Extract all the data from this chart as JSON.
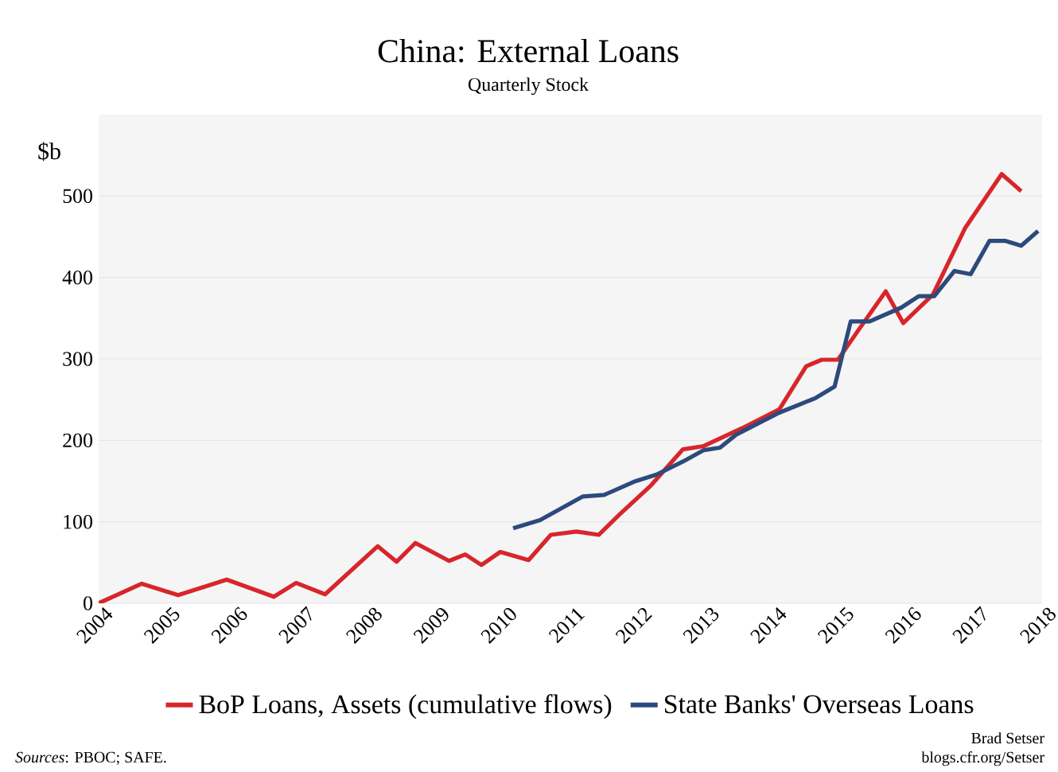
{
  "chart_data": {
    "type": "line",
    "title": "China: External Loans",
    "subtitle": "Quarterly Stock",
    "ylabel": "$b",
    "xlim": [
      2004,
      2018
    ],
    "xticks": [
      2004,
      2005,
      2006,
      2007,
      2008,
      2009,
      2010,
      2011,
      2012,
      2013,
      2014,
      2015,
      2016,
      2017,
      2018
    ],
    "ylim": [
      0,
      600
    ],
    "yticks": [
      0,
      100,
      200,
      300,
      400,
      500
    ],
    "grid": "y",
    "legend": "bottom",
    "marker": "none",
    "line_style": "solid",
    "series": [
      {
        "name": "BoP Loans, Assets (cumulative flows)",
        "color": "#d7262b",
        "x": [
          2004,
          2004.64,
          2005.18,
          2005.9,
          2006.6,
          2006.93,
          2007.36,
          2008.14,
          2008.42,
          2008.7,
          2009.2,
          2009.44,
          2009.68,
          2009.96,
          2010.38,
          2010.71,
          2011.09,
          2011.42,
          2011.73,
          2012.2,
          2012.67,
          2012.98,
          2013.55,
          2014.1,
          2014.5,
          2014.73,
          2014.97,
          2015.28,
          2015.68,
          2015.94,
          2016.38,
          2016.86,
          2017.4,
          2017.69
        ],
        "values": [
          0,
          24,
          10,
          29,
          8,
          25,
          11,
          70,
          51,
          74,
          52,
          60,
          47,
          63,
          53,
          84,
          88,
          84,
          109,
          145,
          189,
          193,
          215,
          238,
          291,
          299,
          299,
          336,
          383,
          344,
          379,
          461,
          527,
          506
        ]
      },
      {
        "name": "State Banks' Overseas Loans",
        "color": "#2c4a7c",
        "x": [
          2010.15,
          2010.55,
          2011.18,
          2011.5,
          2011.97,
          2012.28,
          2012.67,
          2012.98,
          2013.22,
          2013.46,
          2014.1,
          2014.64,
          2014.92,
          2015.16,
          2015.44,
          2015.91,
          2016.17,
          2016.4,
          2016.7,
          2016.94,
          2017.22,
          2017.45,
          2017.69,
          2017.94
        ],
        "values": [
          92,
          102,
          131,
          133,
          150,
          158,
          174,
          188,
          191,
          207,
          234,
          252,
          266,
          346,
          346,
          363,
          377,
          377,
          408,
          404,
          445,
          445,
          439,
          457
        ]
      }
    ],
    "annotations": [
      "*Sources*: PBOC; SAFE.",
      "Brad Setser",
      "blogs.cfr.org/Setser"
    ]
  }
}
